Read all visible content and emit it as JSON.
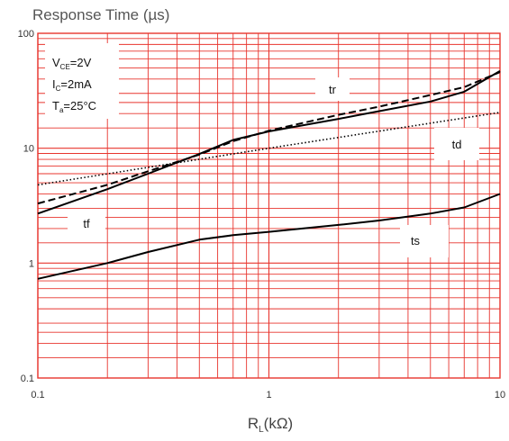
{
  "chart_data": {
    "type": "line",
    "title": "Response Time (µs)",
    "xlabel_main": "R",
    "xlabel_sub": "L",
    "xlabel_rest": "(kΩ)",
    "x_scale": "log",
    "y_scale": "log",
    "xlim": [
      0.1,
      10
    ],
    "ylim": [
      0.1,
      100
    ],
    "grid": true,
    "grid_color": "#e8352e",
    "line_color": "#000000",
    "x_ticks": [
      {
        "value": 0.1,
        "label": "0.1"
      },
      {
        "value": 1,
        "label": "1"
      },
      {
        "value": 10,
        "label": "10"
      }
    ],
    "y_ticks": [
      {
        "value": 0.1,
        "label": "0.1"
      },
      {
        "value": 1,
        "label": "1"
      },
      {
        "value": 10,
        "label": "10"
      },
      {
        "value": 100,
        "label": "100"
      }
    ],
    "conditions": [
      {
        "main": "V",
        "sub": "CE",
        "rest": "=2V"
      },
      {
        "main": "I",
        "sub": "C",
        "rest": "=2mA"
      },
      {
        "main": "T",
        "sub": "a",
        "rest": "=25°C"
      }
    ],
    "series": [
      {
        "name": "tr",
        "style": "dashed",
        "x": [
          0.1,
          0.2,
          0.3,
          0.5,
          0.7,
          1,
          2,
          3,
          5,
          7,
          10
        ],
        "y": [
          3.3,
          4.8,
          6.3,
          8.8,
          11.5,
          14.2,
          19.5,
          23,
          29,
          34,
          46
        ]
      },
      {
        "name": "td",
        "style": "dotted",
        "x": [
          0.1,
          1,
          10
        ],
        "y": [
          4.8,
          10,
          20.5
        ]
      },
      {
        "name": "tf",
        "style": "solid",
        "x": [
          0.1,
          0.2,
          0.3,
          0.5,
          0.7,
          1,
          2,
          3,
          5,
          7,
          10
        ],
        "y": [
          2.7,
          4.4,
          6,
          8.9,
          11.8,
          14,
          18,
          21,
          25.5,
          31,
          47
        ]
      },
      {
        "name": "ts",
        "style": "solid",
        "x": [
          0.1,
          0.2,
          0.3,
          0.5,
          0.7,
          1,
          2,
          3,
          5,
          7,
          10
        ],
        "y": [
          0.73,
          1.0,
          1.25,
          1.6,
          1.75,
          1.87,
          2.15,
          2.35,
          2.7,
          3.05,
          4.0
        ]
      }
    ]
  }
}
